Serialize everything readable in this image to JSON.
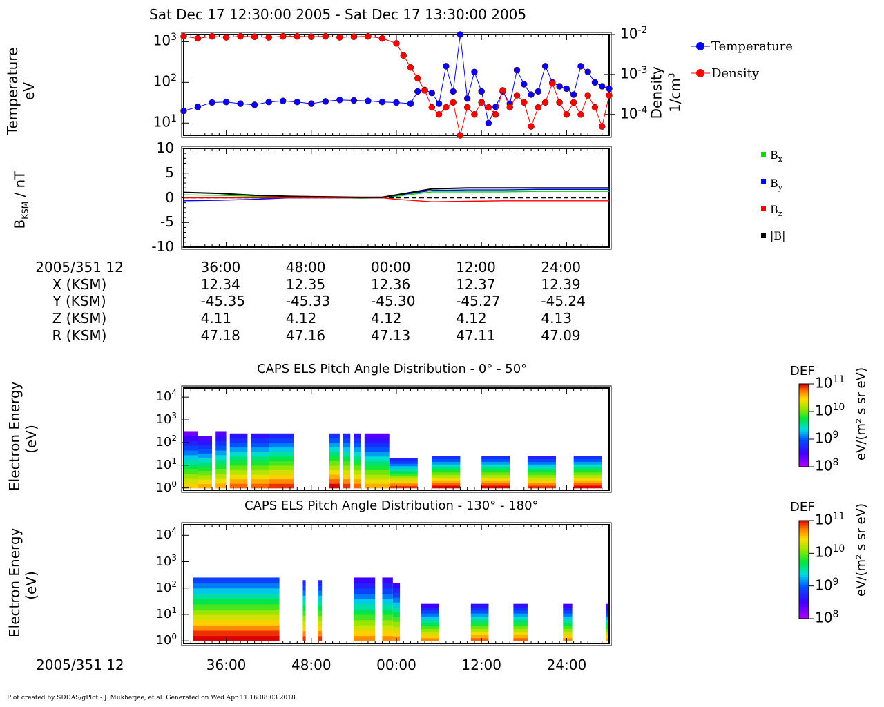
{
  "header": {
    "title": "Sat Dec 17 12:30:00 2005 - Sat Dec 17 13:30:00 2005"
  },
  "footer": {
    "credit": "Plot created by SDDAS/gPlot - J. Mukherjee, et al.  Generated on Wed Apr 11 16:08:03 2018."
  },
  "panel1": {
    "ylabel_left_1": "Temperature",
    "ylabel_left_2": "eV",
    "ylabel_right_1": "Density",
    "ylabel_right_2": "1/cm",
    "ylabel_right_sup": "3",
    "left_ticks": [
      {
        "base": "10",
        "exp": "1"
      },
      {
        "base": "10",
        "exp": "2"
      },
      {
        "base": "10",
        "exp": "3"
      }
    ],
    "right_ticks": [
      {
        "base": "10",
        "exp": "-4"
      },
      {
        "base": "10",
        "exp": "-3"
      },
      {
        "base": "10",
        "exp": "-2"
      }
    ],
    "legend": [
      {
        "label": "Temperature",
        "color": "#0000ff"
      },
      {
        "label": "Density",
        "color": "#ff0000"
      }
    ]
  },
  "panel2": {
    "ylabel_main": "B",
    "ylabel_sub": "KSM",
    "ylabel_unit": " / nT",
    "ticks": [
      "10",
      "5",
      "0",
      "-5",
      "-10"
    ],
    "legend": [
      {
        "main": "B",
        "sub": "x",
        "color": "#00dd00"
      },
      {
        "main": "B",
        "sub": "y",
        "color": "#0000ff"
      },
      {
        "main": "B",
        "sub": "z",
        "color": "#ff0000"
      },
      {
        "main": "|B|",
        "sub": "",
        "color": "#000000"
      }
    ]
  },
  "ephemeris": {
    "rows": [
      {
        "label": "2005/351 12",
        "values": [
          "36:00",
          "48:00",
          "00:00",
          "12:00",
          "24:00"
        ]
      },
      {
        "label": "X (KSM)",
        "values": [
          "12.34",
          "12.35",
          "12.36",
          "12.37",
          "12.39"
        ]
      },
      {
        "label": "Y (KSM)",
        "values": [
          "-45.35",
          "-45.33",
          "-45.30",
          "-45.27",
          "-45.24"
        ]
      },
      {
        "label": "Z (KSM)",
        "values": [
          "4.11",
          "4.12",
          "4.12",
          "4.12",
          "4.13"
        ]
      },
      {
        "label": "R (KSM)",
        "values": [
          "47.18",
          "47.16",
          "47.13",
          "47.11",
          "47.09"
        ]
      }
    ]
  },
  "spectrogram1": {
    "title": "CAPS ELS Pitch Angle Distribution - 0° - 50°",
    "ylabel_1": "Electron Energy",
    "ylabel_2": "(eV)",
    "ticks": [
      {
        "base": "10",
        "exp": "0"
      },
      {
        "base": "10",
        "exp": "1"
      },
      {
        "base": "10",
        "exp": "2"
      },
      {
        "base": "10",
        "exp": "3"
      },
      {
        "base": "10",
        "exp": "4"
      }
    ],
    "colorbar": {
      "title": "DEF",
      "unit": "eV/(m² s sr eV)",
      "ticks": [
        {
          "base": "10",
          "exp": "8"
        },
        {
          "base": "10",
          "exp": "9"
        },
        {
          "base": "10",
          "exp": "10"
        },
        {
          "base": "10",
          "exp": "11"
        }
      ]
    }
  },
  "spectrogram2": {
    "title": "CAPS ELS Pitch Angle Distribution - 130° - 180°",
    "ylabel_1": "Electron Energy",
    "ylabel_2": "(eV)",
    "ticks": [
      {
        "base": "10",
        "exp": "0"
      },
      {
        "base": "10",
        "exp": "1"
      },
      {
        "base": "10",
        "exp": "2"
      },
      {
        "base": "10",
        "exp": "3"
      },
      {
        "base": "10",
        "exp": "4"
      }
    ],
    "colorbar": {
      "title": "DEF",
      "unit": "eV/(m² s sr eV)",
      "ticks": [
        {
          "base": "10",
          "exp": "8"
        },
        {
          "base": "10",
          "exp": "9"
        },
        {
          "base": "10",
          "exp": "10"
        },
        {
          "base": "10",
          "exp": "11"
        }
      ]
    }
  },
  "bottom_axis": {
    "label": "2005/351 12",
    "ticks": [
      "36:00",
      "48:00",
      "00:00",
      "12:00",
      "24:00"
    ]
  },
  "chart_data": [
    {
      "type": "line",
      "x_unit": "minutes after 12:30",
      "xlim": [
        0,
        60
      ],
      "ylim_left": [
        5,
        1500
      ],
      "ylim_right": [
        3e-05,
        0.01
      ],
      "log_y": true,
      "series": [
        {
          "name": "Temperature",
          "color": "#0000ff",
          "axis": "left",
          "x": [
            0,
            2,
            4,
            6,
            8,
            10,
            12,
            14,
            16,
            18,
            20,
            22,
            24,
            26,
            28,
            30,
            32,
            33,
            34,
            35,
            36,
            37,
            38,
            39,
            40,
            41,
            42,
            43,
            44,
            45,
            46,
            47,
            48,
            49,
            50,
            51,
            52,
            53,
            54,
            55,
            56,
            57,
            58,
            59,
            60
          ],
          "y": [
            20,
            25,
            32,
            33,
            30,
            28,
            33,
            35,
            33,
            30,
            34,
            37,
            36,
            35,
            33,
            32,
            30,
            60,
            65,
            55,
            30,
            250,
            60,
            1500,
            40,
            180,
            60,
            10,
            25,
            60,
            30,
            200,
            90,
            50,
            60,
            250,
            100,
            80,
            70,
            50,
            250,
            180,
            100,
            80,
            70
          ]
        },
        {
          "name": "Density",
          "color": "#ff0000",
          "axis": "right",
          "x": [
            0,
            2,
            4,
            6,
            8,
            10,
            12,
            14,
            16,
            18,
            20,
            22,
            24,
            26,
            28,
            30,
            31,
            32,
            33,
            34,
            35,
            36,
            37,
            38,
            39,
            40,
            41,
            42,
            43,
            44,
            45,
            46,
            47,
            48,
            49,
            50,
            51,
            52,
            53,
            54,
            55,
            56,
            57,
            58,
            59,
            60
          ],
          "y": [
            0.009,
            0.008,
            0.009,
            0.0085,
            0.009,
            0.0088,
            0.0085,
            0.009,
            0.009,
            0.0088,
            0.009,
            0.0085,
            0.0088,
            0.009,
            0.008,
            0.006,
            0.003,
            0.0015,
            0.0008,
            0.0004,
            0.00015,
            0.0001,
            0.00015,
            0.0002,
            3e-05,
            0.00015,
            0.0001,
            0.0002,
            0.00015,
            0.0001,
            0.0004,
            0.00015,
            0.0003,
            0.0002,
            5e-05,
            0.00015,
            0.0002,
            0.0006,
            0.0002,
            0.0001,
            0.0002,
            0.0001,
            0.0003,
            0.00015,
            5e-05,
            0.0003
          ]
        }
      ]
    },
    {
      "type": "line",
      "x_unit": "minutes after 12:30",
      "xlim": [
        0,
        60
      ],
      "ylim": [
        -10,
        10
      ],
      "series": [
        {
          "name": "Bx",
          "color": "#00dd00",
          "x": [
            0,
            5,
            10,
            15,
            20,
            25,
            28,
            30,
            35,
            40,
            45,
            50,
            55,
            60
          ],
          "y": [
            0.6,
            0.5,
            0.3,
            0.0,
            0.1,
            -0.1,
            0.0,
            0.3,
            1.2,
            1.2,
            1.2,
            1.3,
            1.3,
            1.3
          ]
        },
        {
          "name": "By",
          "color": "#0000ff",
          "x": [
            0,
            5,
            10,
            15,
            20,
            25,
            28,
            30,
            35,
            40,
            45,
            50,
            55,
            60
          ],
          "y": [
            -0.6,
            -0.5,
            -0.3,
            0.0,
            0.0,
            0.0,
            0.0,
            0.5,
            1.5,
            1.6,
            1.6,
            1.7,
            1.7,
            1.7
          ]
        },
        {
          "name": "Bz",
          "color": "#ff0000",
          "x": [
            0,
            5,
            10,
            15,
            20,
            25,
            28,
            30,
            35,
            40,
            45,
            50,
            55,
            60
          ],
          "y": [
            0.0,
            0.0,
            0.0,
            0.0,
            0.0,
            0.0,
            0.0,
            -0.3,
            -0.8,
            -0.7,
            -0.6,
            -0.6,
            -0.6,
            -0.6
          ]
        },
        {
          "name": "|B|",
          "color": "#000000",
          "x": [
            0,
            5,
            10,
            15,
            20,
            25,
            28,
            30,
            35,
            40,
            45,
            50,
            55,
            60
          ],
          "y": [
            1.1,
            0.9,
            0.5,
            0.3,
            0.2,
            0.1,
            0.1,
            0.6,
            1.8,
            2.0,
            2.0,
            2.0,
            2.0,
            2.0
          ]
        }
      ]
    },
    {
      "type": "heatmap",
      "title": "CAPS ELS Pitch Angle Distribution - 0° - 50°",
      "x_unit": "minutes after 12:30",
      "y_unit": "eV (log10)",
      "value_unit": "log10 DEF",
      "blocks": [
        {
          "x0": 0,
          "x1": 2,
          "ytop": 2.5,
          "level": 9.5
        },
        {
          "x0": 2,
          "x1": 4,
          "ytop": 2.3,
          "level": 9.6
        },
        {
          "x0": 4.5,
          "x1": 6,
          "ytop": 2.5,
          "level": 9.6
        },
        {
          "x0": 6.5,
          "x1": 9,
          "ytop": 2.4,
          "level": 9.8
        },
        {
          "x0": 9.5,
          "x1": 12,
          "ytop": 2.4,
          "level": 9.8
        },
        {
          "x0": 12,
          "x1": 15.5,
          "ytop": 2.4,
          "level": 9.9
        },
        {
          "x0": 20.5,
          "x1": 22,
          "ytop": 2.4,
          "level": 10.0
        },
        {
          "x0": 22.5,
          "x1": 23.5,
          "ytop": 2.4,
          "level": 9.9
        },
        {
          "x0": 24,
          "x1": 25,
          "ytop": 2.4,
          "level": 9.8
        },
        {
          "x0": 25.5,
          "x1": 29,
          "ytop": 2.4,
          "level": 9.6
        },
        {
          "x0": 29,
          "x1": 33,
          "ytop": 1.3,
          "level": 9.9
        },
        {
          "x0": 35,
          "x1": 39,
          "ytop": 1.4,
          "level": 10.0
        },
        {
          "x0": 42,
          "x1": 46,
          "ytop": 1.4,
          "level": 10.0
        },
        {
          "x0": 48.5,
          "x1": 52.5,
          "ytop": 1.4,
          "level": 9.9
        },
        {
          "x0": 55,
          "x1": 59,
          "ytop": 1.4,
          "level": 10.0
        }
      ]
    },
    {
      "type": "heatmap",
      "title": "CAPS ELS Pitch Angle Distribution - 130° - 180°",
      "x_unit": "minutes after 12:30",
      "y_unit": "eV (log10)",
      "value_unit": "log10 DEF",
      "blocks": [
        {
          "x0": 1.3,
          "x1": 13.5,
          "ytop": 2.4,
          "level": 10.1
        },
        {
          "x0": 16.8,
          "x1": 17.2,
          "ytop": 2.3,
          "level": 9.9
        },
        {
          "x0": 19,
          "x1": 19.5,
          "ytop": 2.3,
          "level": 9.9
        },
        {
          "x0": 24,
          "x1": 27,
          "ytop": 2.4,
          "level": 9.7
        },
        {
          "x0": 28,
          "x1": 29.5,
          "ytop": 2.4,
          "level": 9.7
        },
        {
          "x0": 29.5,
          "x1": 30.5,
          "ytop": 2.2,
          "level": 9.7
        },
        {
          "x0": 33.5,
          "x1": 36,
          "ytop": 1.4,
          "level": 9.7
        },
        {
          "x0": 40.5,
          "x1": 43,
          "ytop": 1.4,
          "level": 9.8
        },
        {
          "x0": 46.5,
          "x1": 48.5,
          "ytop": 1.4,
          "level": 9.8
        },
        {
          "x0": 53.5,
          "x1": 54.8,
          "ytop": 1.4,
          "level": 9.7
        },
        {
          "x0": 59.6,
          "x1": 60,
          "ytop": 1.4,
          "level": 9.6
        }
      ]
    }
  ]
}
